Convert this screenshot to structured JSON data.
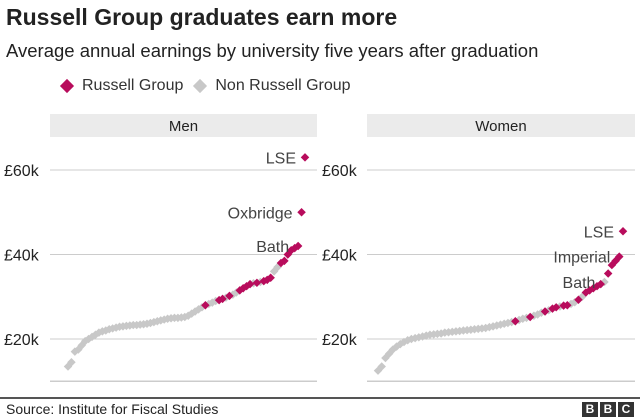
{
  "title": "Russell Group graduates earn more",
  "subtitle": "Average annual earnings by university five years after graduation",
  "source": "Source: Institute for Fiscal Studies",
  "logo": [
    "B",
    "B",
    "C"
  ],
  "colors": {
    "russell": "#b80c5c",
    "non_russell": "#c8c8c8",
    "panel_header": "#ebebeb",
    "grid": "#cccccc"
  },
  "chart_data": [
    {
      "type": "scatter",
      "panel": "Men",
      "legend": [
        "Russell Group",
        "Non Russell Group"
      ],
      "legend_position": "top",
      "ylim": [
        10000,
        65000
      ],
      "yticks": [
        20000,
        40000,
        60000
      ],
      "ytick_labels": [
        "£20k",
        "£40k",
        "£60k"
      ],
      "grid": true,
      "values": [
        13.5,
        14.5,
        17,
        17.5,
        18.5,
        19.5,
        20,
        20.5,
        21,
        21.5,
        21.8,
        22,
        22.3,
        22.5,
        22.7,
        22.9,
        23,
        23.1,
        23.2,
        23.3,
        23.3,
        23.4,
        23.5,
        23.6,
        23.8,
        24,
        24.2,
        24.4,
        24.6,
        24.8,
        24.9,
        25,
        25,
        25.1,
        25.2,
        25.5,
        26,
        26.5,
        27,
        27.5,
        28,
        28.3,
        28.6,
        29,
        29.2,
        29.5,
        29.8,
        30.2,
        30.5,
        31,
        31.5,
        32,
        32.5,
        33,
        33.2,
        33.3,
        33.5,
        33.7,
        34,
        34.5,
        36,
        37,
        38,
        38.5,
        40,
        41,
        41.5,
        42,
        50,
        63
      ],
      "russell_group": [
        0,
        0,
        0,
        0,
        0,
        0,
        0,
        0,
        0,
        0,
        0,
        0,
        0,
        0,
        0,
        0,
        0,
        0,
        0,
        0,
        0,
        0,
        0,
        0,
        0,
        0,
        0,
        0,
        0,
        0,
        0,
        0,
        0,
        0,
        0,
        0,
        0,
        0,
        0,
        0,
        1,
        0,
        0,
        0,
        1,
        1,
        0,
        1,
        0,
        0,
        1,
        1,
        1,
        1,
        0,
        1,
        0,
        1,
        1,
        1,
        0,
        0,
        1,
        1,
        1,
        1,
        1,
        1,
        1,
        1
      ],
      "value_unit": "£ thousands",
      "annotations": [
        {
          "label": "LSE",
          "value": 63
        },
        {
          "label": "Oxbridge",
          "value": 50
        },
        {
          "label": "Bath",
          "value": 42
        }
      ]
    },
    {
      "type": "scatter",
      "panel": "Women",
      "ylim": [
        10000,
        65000
      ],
      "yticks": [
        20000,
        40000,
        60000
      ],
      "ytick_labels": [
        "£20k",
        "£40k",
        "£60k"
      ],
      "grid": true,
      "values": [
        12.5,
        13.5,
        15.5,
        16.5,
        17.5,
        18.2,
        18.8,
        19.3,
        19.7,
        20,
        20.2,
        20.4,
        20.6,
        20.8,
        21,
        21.1,
        21.2,
        21.3,
        21.5,
        21.6,
        21.7,
        21.8,
        21.9,
        22,
        22.1,
        22.2,
        22.3,
        22.4,
        22.5,
        22.6,
        22.8,
        23,
        23.2,
        23.4,
        23.6,
        23.8,
        24,
        24.2,
        24.5,
        24.8,
        25,
        25.2,
        25.5,
        25.8,
        26.2,
        26.5,
        26.8,
        27.2,
        27.5,
        27.7,
        27.9,
        28,
        28.3,
        28.7,
        29.3,
        30,
        31,
        31.5,
        32,
        32.5,
        33,
        33.5,
        35.5,
        37.5,
        38.5,
        39.5,
        45.5
      ],
      "russell_group": [
        0,
        0,
        0,
        0,
        0,
        0,
        0,
        0,
        0,
        0,
        0,
        0,
        0,
        0,
        0,
        0,
        0,
        0,
        0,
        0,
        0,
        0,
        0,
        0,
        0,
        0,
        0,
        0,
        0,
        0,
        0,
        0,
        0,
        0,
        0,
        0,
        0,
        1,
        0,
        0,
        0,
        1,
        0,
        0,
        0,
        1,
        0,
        1,
        1,
        0,
        1,
        1,
        0,
        0,
        1,
        0,
        1,
        1,
        1,
        1,
        1,
        0,
        1,
        1,
        1,
        1,
        1
      ],
      "value_unit": "£ thousands",
      "annotations": [
        {
          "label": "LSE",
          "value": 45.5
        },
        {
          "label": "Imperial",
          "value": 39.5
        },
        {
          "label": "Bath",
          "value": 33.5
        }
      ]
    }
  ]
}
